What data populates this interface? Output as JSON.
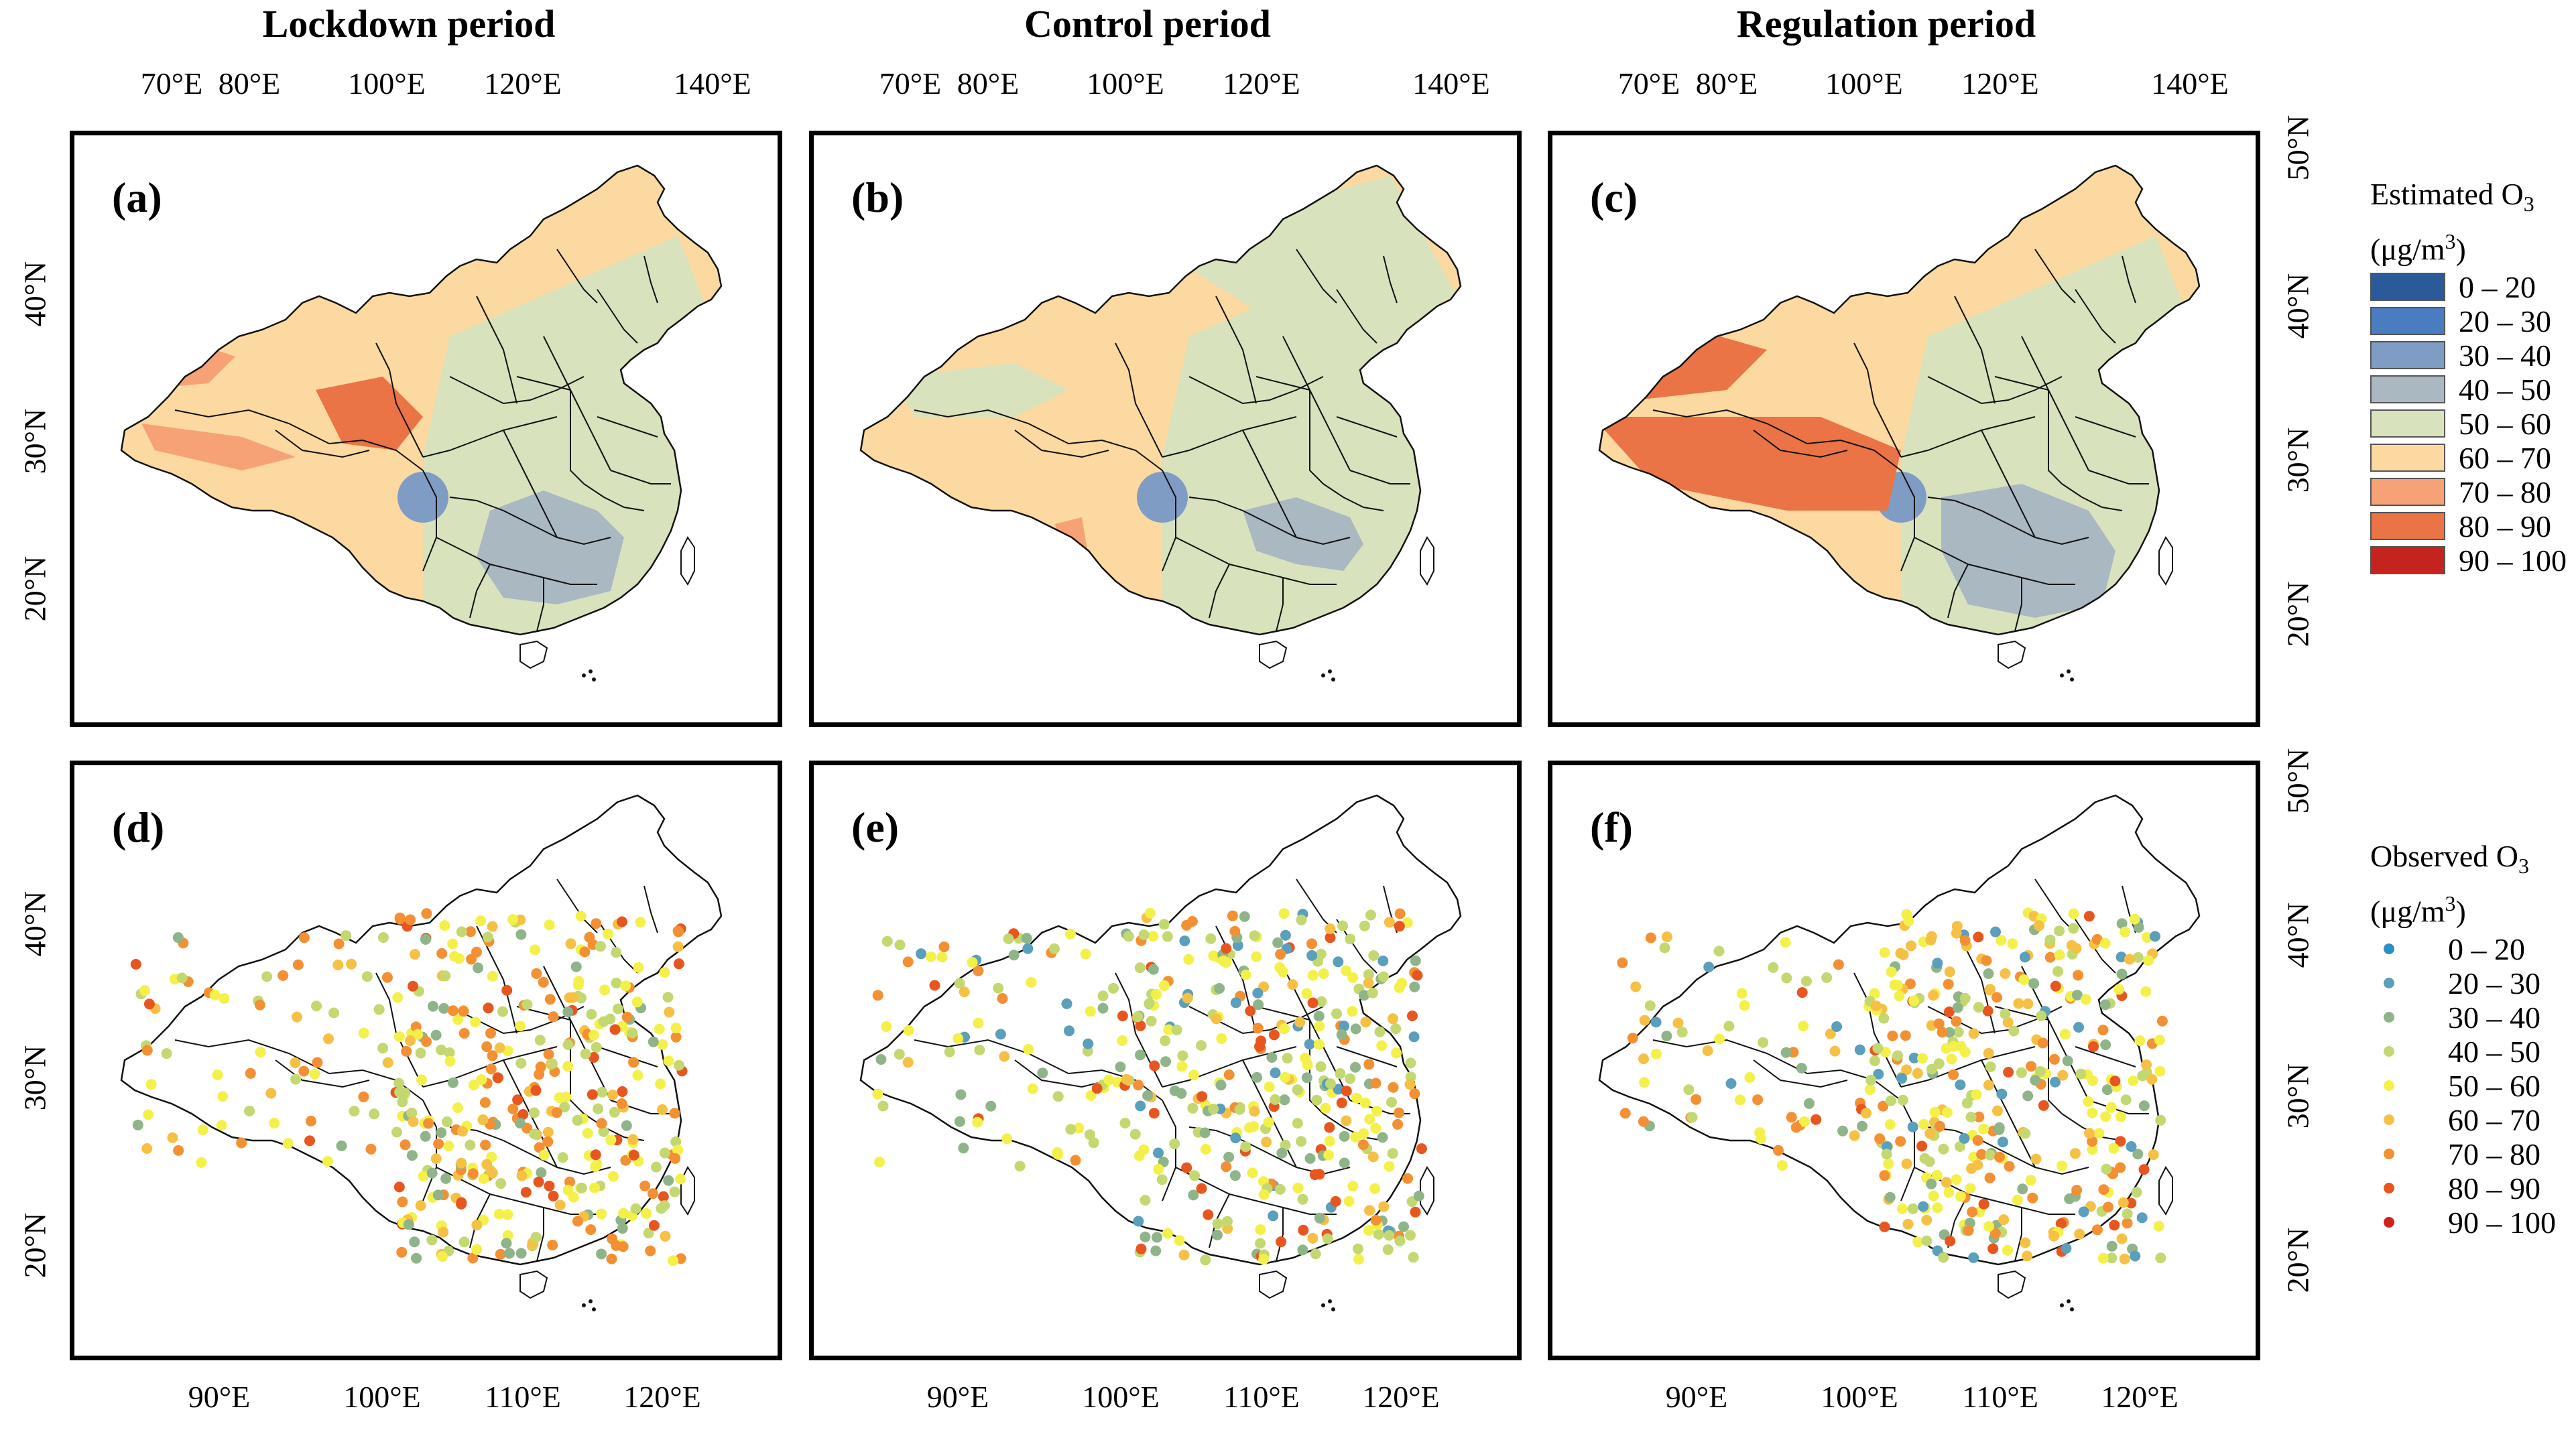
{
  "columns": [
    {
      "title": "Lockdown period"
    },
    {
      "title": "Control period"
    },
    {
      "title": "Regulation period"
    }
  ],
  "top_lon_ticks": [
    "70°E",
    "80°E",
    "100°E",
    "120°E",
    "140°E"
  ],
  "bottom_lon_ticks": [
    "90°E",
    "100°E",
    "110°E",
    "120°E"
  ],
  "top_lat_ticks": [
    "40°N",
    "30°N",
    "20°N"
  ],
  "right_top_lat_ticks": [
    "50°N",
    "40°N",
    "30°N",
    "20°N"
  ],
  "bottom_lat_ticks": [
    "40°N",
    "30°N",
    "20°N"
  ],
  "right_bottom_lat_ticks": [
    "50°N",
    "40°N",
    "30°N",
    "20°N"
  ],
  "panels": [
    {
      "label": "(a)",
      "kind": "estimated",
      "period": "Lockdown"
    },
    {
      "label": "(b)",
      "kind": "estimated",
      "period": "Control"
    },
    {
      "label": "(c)",
      "kind": "estimated",
      "period": "Regulation"
    },
    {
      "label": "(d)",
      "kind": "observed",
      "period": "Lockdown"
    },
    {
      "label": "(e)",
      "kind": "observed",
      "period": "Control"
    },
    {
      "label": "(f)",
      "kind": "observed",
      "period": "Regulation"
    }
  ],
  "legend_estimated": {
    "title_line1": "Estimated O",
    "title_sub": "3",
    "title_line2": "(μg/m",
    "title_sup": "3",
    "title_close": ")",
    "classes": [
      {
        "range": "0 – 20",
        "color": "#2b5a9a"
      },
      {
        "range": "20 – 30",
        "color": "#4a7cc0"
      },
      {
        "range": "30 – 40",
        "color": "#7f9cc4"
      },
      {
        "range": "40 – 50",
        "color": "#aab8c2"
      },
      {
        "range": "50 – 60",
        "color": "#d8e3bd"
      },
      {
        "range": "60 – 70",
        "color": "#fbd9a0"
      },
      {
        "range": "70 – 80",
        "color": "#f6a276"
      },
      {
        "range": "80 – 90",
        "color": "#ea7446"
      },
      {
        "range": "90 – 100",
        "color": "#c4231e"
      }
    ]
  },
  "legend_observed": {
    "title_line1": "Observed O",
    "title_sub": "3",
    "title_line2": "(μg/m",
    "title_sup": "3",
    "title_close": ")",
    "classes": [
      {
        "range": "0 – 20",
        "color": "#2c8fc4"
      },
      {
        "range": "20 – 30",
        "color": "#5a9fbc"
      },
      {
        "range": "30 – 40",
        "color": "#8fb48a"
      },
      {
        "range": "40 – 50",
        "color": "#c3d870"
      },
      {
        "range": "50 – 60",
        "color": "#f4f04a"
      },
      {
        "range": "60 – 70",
        "color": "#f6c044"
      },
      {
        "range": "70 – 80",
        "color": "#f39033"
      },
      {
        "range": "80 – 90",
        "color": "#e8561f"
      },
      {
        "range": "90 – 100",
        "color": "#d0211c"
      }
    ]
  }
}
